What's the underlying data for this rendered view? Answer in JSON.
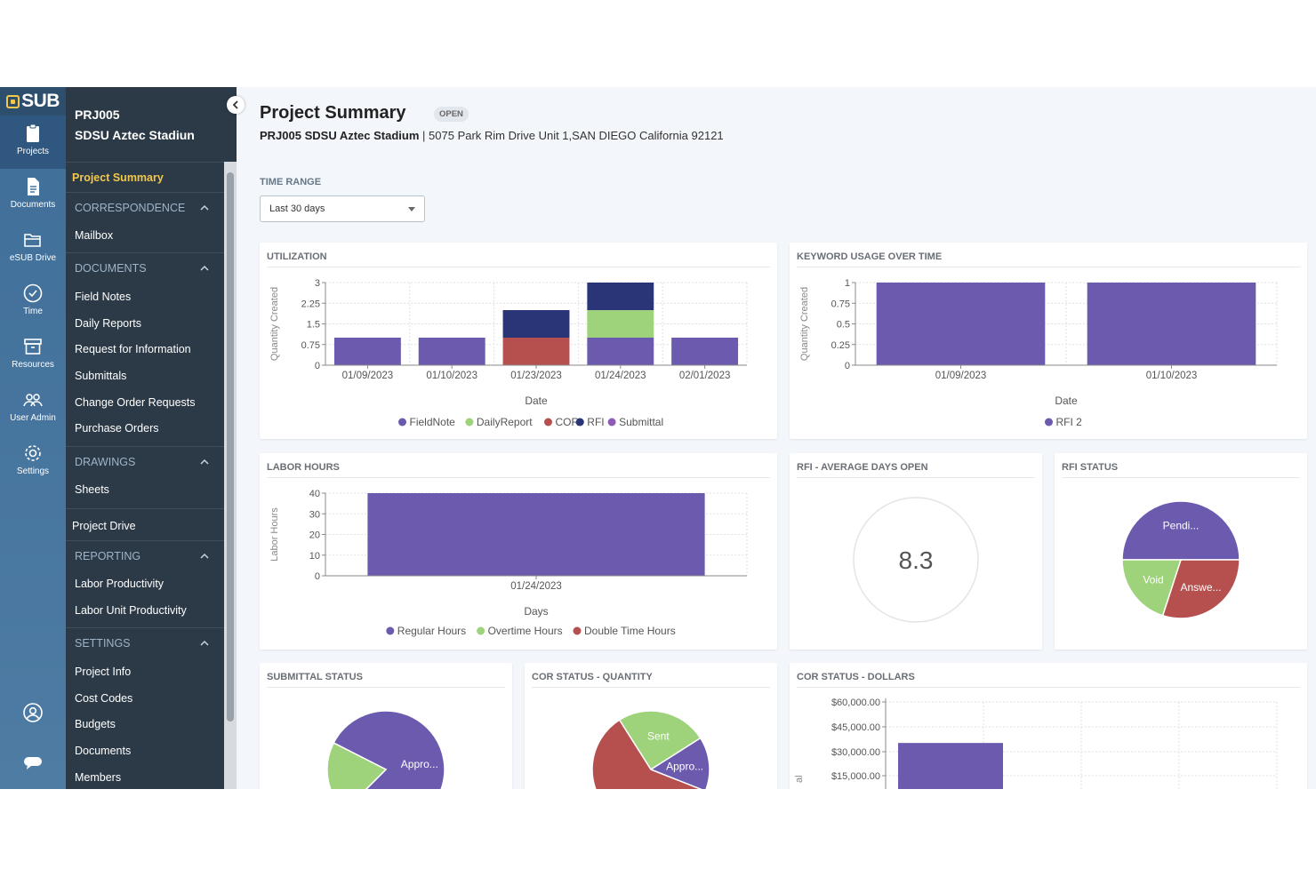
{
  "rail": {
    "logo": "SUB",
    "items": [
      {
        "label": "Projects"
      },
      {
        "label": "Documents"
      },
      {
        "label": "eSUB Drive"
      },
      {
        "label": "Time"
      },
      {
        "label": "Resources"
      },
      {
        "label": "User Admin"
      },
      {
        "label": "Settings"
      }
    ]
  },
  "sidebar": {
    "project_code": "PRJ005",
    "project_name": "SDSU Aztec Stadiun",
    "project_summary": "Project Summary",
    "correspondence": "CORRESPONDENCE",
    "mailbox": "Mailbox",
    "documents_section": "DOCUMENTS",
    "field_notes": "Field Notes",
    "daily_reports": "Daily Reports",
    "rfi": "Request for Information",
    "submittals": "Submittals",
    "cor": "Change Order Requests",
    "purchase_orders": "Purchase Orders",
    "drawings_section": "DRAWINGS",
    "sheets": "Sheets",
    "project_drive": "Project Drive",
    "reporting_section": "REPORTING",
    "labor_productivity": "Labor Productivity",
    "labor_unit_productivity": "Labor Unit Productivity",
    "settings_section": "SETTINGS",
    "project_info": "Project Info",
    "cost_codes": "Cost Codes",
    "budgets": "Budgets",
    "documents": "Documents",
    "members": "Members"
  },
  "header": {
    "title": "Project Summary",
    "status": "OPEN",
    "project": "PRJ005 SDSU Aztec Stadium",
    "address": "5075 Park Rim Drive Unit 1,SAN DIEGO California 92121"
  },
  "time_range": {
    "label": "TIME RANGE",
    "value": "Last 30 days"
  },
  "colors": {
    "purple": "#6b5aae",
    "green": "#9ed27b",
    "red": "#b5504f",
    "navy": "#2a3578",
    "violet": "#8e5cb6"
  },
  "chart_data": [
    {
      "id": "utilization",
      "type": "bar",
      "title": "UTILIZATION",
      "xlabel": "Date",
      "ylabel": "Quantity Created",
      "ylim": [
        0,
        3
      ],
      "yticks": [
        "0",
        "0.75",
        "1.5",
        "2.25",
        "3"
      ],
      "categories": [
        "01/09/2023",
        "01/10/2023",
        "01/23/2023",
        "01/24/2023",
        "02/01/2023"
      ],
      "stacked": true,
      "series": [
        {
          "name": "FieldNote",
          "color": "#6b5aae",
          "values": [
            1,
            1,
            0,
            1,
            1
          ]
        },
        {
          "name": "DailyReport",
          "color": "#9ed27b",
          "values": [
            0,
            0,
            0,
            1,
            0
          ]
        },
        {
          "name": "COR",
          "color": "#b5504f",
          "values": [
            0,
            0,
            1,
            0,
            0
          ]
        },
        {
          "name": "RFI",
          "color": "#2a3578",
          "values": [
            0,
            0,
            1,
            1,
            0
          ]
        },
        {
          "name": "Submittal",
          "color": "#8e5cb6",
          "values": [
            0,
            0,
            0,
            0,
            0
          ]
        }
      ]
    },
    {
      "id": "keyword",
      "type": "bar",
      "title": "KEYWORD USAGE OVER TIME",
      "xlabel": "Date",
      "ylabel": "Quantity Created",
      "ylim": [
        0,
        1
      ],
      "yticks": [
        "0",
        "0.25",
        "0.5",
        "0.75",
        "1"
      ],
      "categories": [
        "01/09/2023",
        "01/10/2023"
      ],
      "series": [
        {
          "name": "RFI 2",
          "color": "#6b5aae",
          "values": [
            1,
            1
          ]
        }
      ]
    },
    {
      "id": "labor",
      "type": "bar",
      "title": "LABOR HOURS",
      "xlabel": "Days",
      "ylabel": "Labor Hours",
      "ylim": [
        0,
        40
      ],
      "yticks": [
        "0",
        "10",
        "20",
        "30",
        "40"
      ],
      "categories": [
        "01/24/2023"
      ],
      "stacked": true,
      "series": [
        {
          "name": "Regular Hours",
          "color": "#6b5aae",
          "values": [
            40
          ]
        },
        {
          "name": "Overtime Hours",
          "color": "#9ed27b",
          "values": [
            0
          ]
        },
        {
          "name": "Double Time Hours",
          "color": "#b5504f",
          "values": [
            0
          ]
        }
      ]
    },
    {
      "id": "rfi_avg",
      "type": "table",
      "title": "RFI - AVERAGE DAYS OPEN",
      "value": "8.3"
    },
    {
      "id": "rfi_status",
      "type": "pie",
      "title": "RFI STATUS",
      "slices": [
        {
          "label": "Pendi...",
          "value": 50,
          "color": "#6b5aae"
        },
        {
          "label": "Answe...",
          "value": 30,
          "color": "#b5504f"
        },
        {
          "label": "Void",
          "value": 20,
          "color": "#9ed27b"
        }
      ]
    },
    {
      "id": "submittal_status",
      "type": "pie",
      "title": "SUBMITTAL STATUS",
      "slices": [
        {
          "label": "Appro...",
          "value": 80,
          "color": "#6b5aae"
        },
        {
          "label": "",
          "value": 20,
          "color": "#9ed27b"
        }
      ]
    },
    {
      "id": "cor_quantity",
      "type": "pie",
      "title": "COR STATUS - QUANTITY",
      "slices": [
        {
          "label": "Sent",
          "value": 25,
          "color": "#9ed27b"
        },
        {
          "label": "Appro...",
          "value": 15,
          "color": "#6b5aae"
        },
        {
          "label": "",
          "value": 60,
          "color": "#b5504f"
        }
      ]
    },
    {
      "id": "cor_dollars",
      "type": "bar",
      "title": "COR STATUS - DOLLARS",
      "ylabel": "al",
      "yticks": [
        "$15,000.00",
        "$30,000.00",
        "$45,000.00",
        "$60,000.00"
      ],
      "ylim": [
        0,
        60000
      ],
      "series": [
        {
          "name": "",
          "color": "#6b5aae",
          "values": [
            35000
          ]
        }
      ]
    }
  ]
}
